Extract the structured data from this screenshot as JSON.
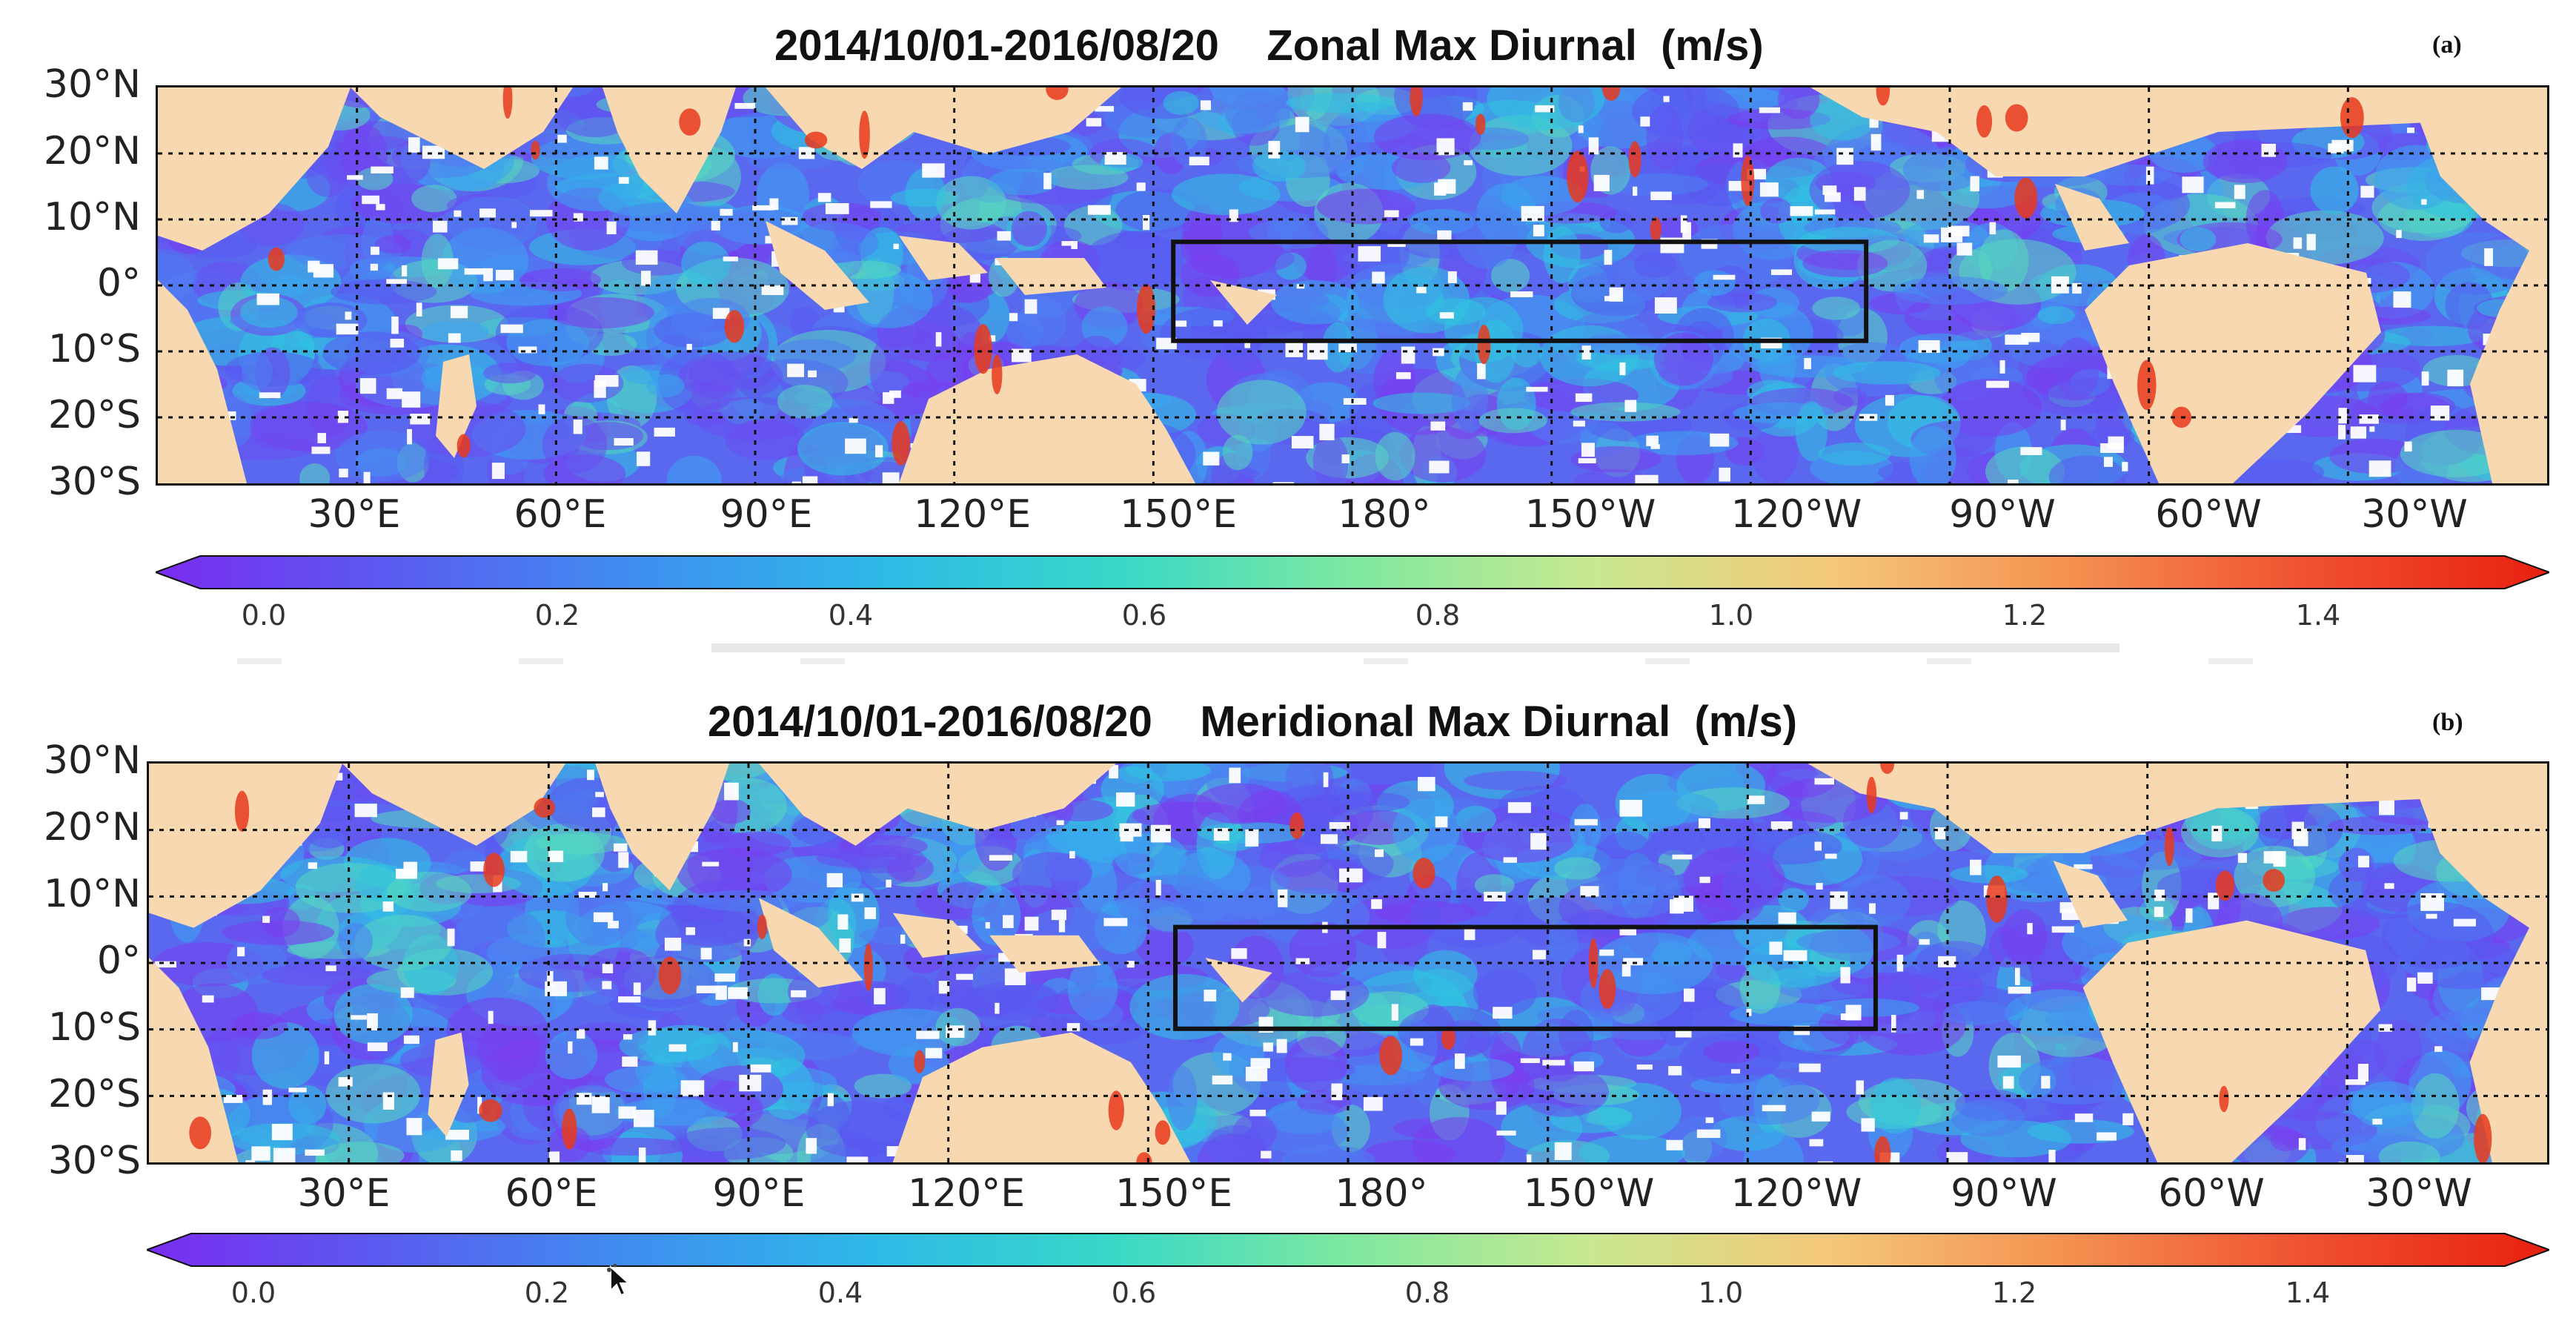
{
  "panels": [
    {
      "title": "2014/10/01-2016/08/20    Zonal Max Diurnal  (m/s)",
      "tag": "(a)"
    },
    {
      "title": "2014/10/01-2016/08/20    Meridional Max Diurnal  (m/s)",
      "tag": "(b)"
    }
  ],
  "lat_labels": [
    "30°N",
    "20°N",
    "10°N",
    "0°",
    "10°S",
    "20°S",
    "30°S"
  ],
  "lon_labels": [
    "30°E",
    "60°E",
    "90°E",
    "120°E",
    "150°E",
    "180°",
    "150°W",
    "120°W",
    "90°W",
    "60°W",
    "30°W"
  ],
  "colorbar": {
    "ticks": [
      "0.0",
      "0.2",
      "0.4",
      "0.6",
      "0.8",
      "1.0",
      "1.2",
      "1.4"
    ],
    "colors": [
      "#7a2cf0",
      "#5a5cf0",
      "#3f8ef0",
      "#2fb8e8",
      "#37d8c8",
      "#7ee8a0",
      "#c8e890",
      "#f4c878",
      "#f49050",
      "#f05030",
      "#e82010"
    ]
  },
  "colors": {
    "land": "#f7d8b0",
    "ocean_base": "#5a68f0",
    "missing": "#ffffff",
    "grid": "#111111",
    "box": "#111111"
  }
}
